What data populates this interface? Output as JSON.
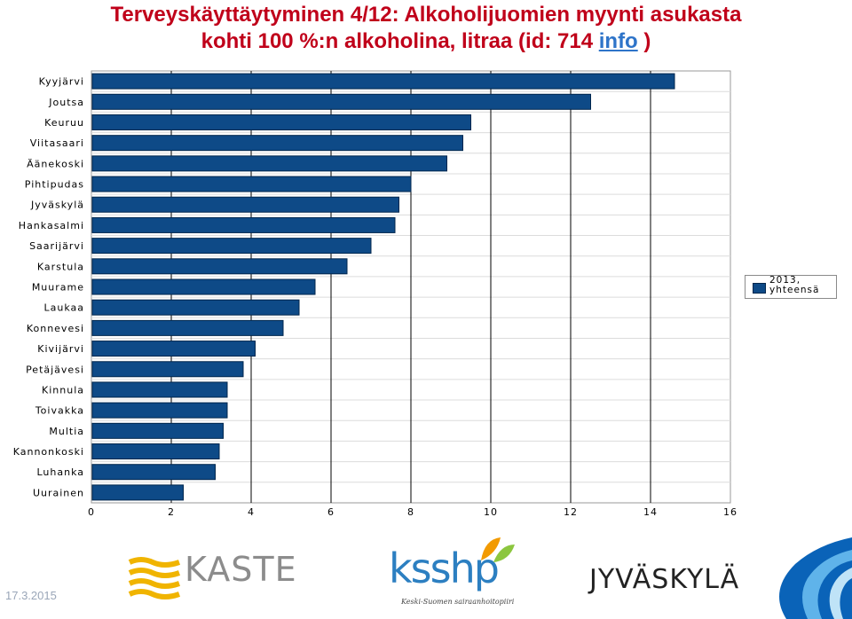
{
  "title": {
    "line1": "Terveyskäyttäytyminen 4/12: Alkoholijuomien myynti asukasta",
    "line2": "kohti 100 %:n alkoholina, litraa (id: 714 ",
    "link": "info",
    "line2_end": " )"
  },
  "chart_data": {
    "type": "bar",
    "orientation": "horizontal",
    "categories": [
      "Kyyjärvi",
      "Joutsa",
      "Keuruu",
      "Viitasaari",
      "Äänekoski",
      "Pihtipudas",
      "Jyväskylä",
      "Hankasalmi",
      "Saarijärvi",
      "Karstula",
      "Muurame",
      "Laukaa",
      "Konnevesi",
      "Kivijärvi",
      "Petäjävesi",
      "Kinnula",
      "Toivakka",
      "Multia",
      "Kannonkoski",
      "Luhanka",
      "Uurainen"
    ],
    "series": [
      {
        "name": "2013, yhteensä",
        "values": [
          14.6,
          12.5,
          9.5,
          9.3,
          8.9,
          8.0,
          7.7,
          7.6,
          7.0,
          6.4,
          5.6,
          5.2,
          4.8,
          4.1,
          3.8,
          3.4,
          3.4,
          3.3,
          3.2,
          3.1,
          2.3
        ]
      }
    ],
    "xlim": [
      0,
      16
    ],
    "xticks": [
      "0",
      "2",
      "4",
      "6",
      "8",
      "10",
      "12",
      "14",
      "16"
    ],
    "grid": true,
    "legend_position": "right",
    "bar_color": "#0e4a87"
  },
  "legend": {
    "line1": "2013,",
    "line2": "yhteensä"
  },
  "footer": {
    "date": "17.3.2015",
    "kaste": "KASTE",
    "ksshp": "ksshp",
    "ksshp_sub": "Keski-Suomen sairaanhoitopiiri",
    "jyvaskyla": "JYVÄSKYLÄ"
  }
}
